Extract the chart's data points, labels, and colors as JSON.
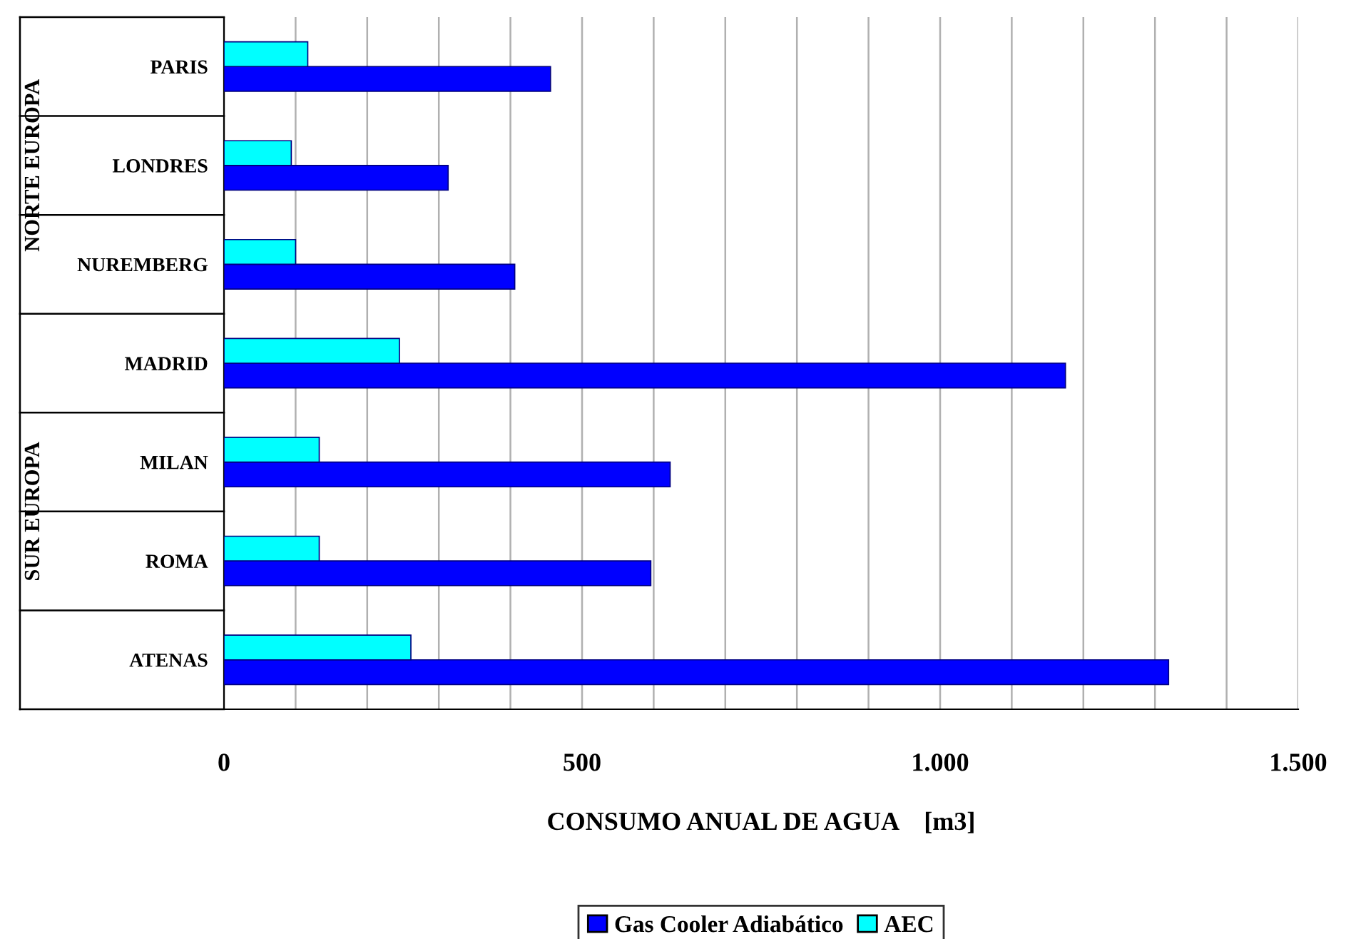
{
  "chart_data": {
    "type": "bar",
    "orientation": "horizontal",
    "categories": [
      "PARIS",
      "LONDRES",
      "NUREMBERG",
      "MADRID",
      "MILAN",
      "ROMA",
      "ATENAS"
    ],
    "series": [
      {
        "name": "Gas Cooler Adiabático",
        "color": "#0000ff",
        "values": [
          456,
          313,
          406,
          1175,
          623,
          596,
          1319
        ]
      },
      {
        "name": "AEC",
        "color": "#00ffff",
        "values": [
          117,
          94,
          100,
          245,
          133,
          133,
          261
        ]
      }
    ],
    "xlabel": "CONSUMO ANUAL DE AGUA    [m3]",
    "xlim": [
      0,
      1500
    ],
    "xticks": [
      0,
      {
        "value": 100,
        "label": null
      },
      {
        "value": 200,
        "label": null
      },
      {
        "value": 300,
        "label": null
      },
      {
        "value": 400,
        "label": null
      },
      500,
      {
        "value": 600,
        "label": null
      },
      {
        "value": 700,
        "label": null
      },
      {
        "value": 800,
        "label": null
      },
      {
        "value": 900,
        "label": null
      },
      {
        "value": 1000,
        "label": "1.000"
      },
      {
        "value": 1100,
        "label": null
      },
      {
        "value": 1200,
        "label": null
      },
      {
        "value": 1300,
        "label": null
      },
      {
        "value": 1400,
        "label": null
      },
      {
        "value": 1500,
        "label": "1.500"
      }
    ],
    "annotations": [
      "NORTE EUROPA",
      "SUR EUROPA"
    ],
    "grid": "x",
    "legend": "bottom"
  }
}
